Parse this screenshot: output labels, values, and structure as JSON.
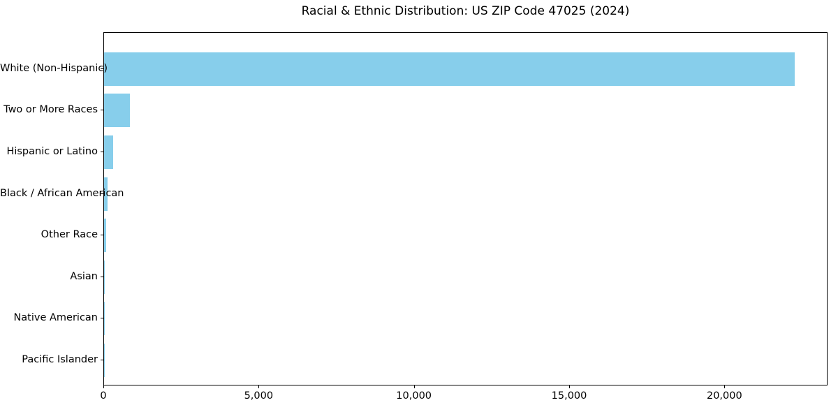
{
  "chart_data": {
    "type": "bar",
    "orientation": "horizontal",
    "title": "Racial & Ethnic Distribution: US ZIP Code 47025 (2024)",
    "categories": [
      "White (Non-Hispanic)",
      "Two or More Races",
      "Hispanic or Latino",
      "Black / African American",
      "Other Race",
      "Asian",
      "Native American",
      "Pacific Islander"
    ],
    "values": [
      22230,
      830,
      285,
      110,
      75,
      25,
      10,
      2
    ],
    "xlabel": "",
    "ylabel": "",
    "xlim": [
      0,
      23320
    ],
    "x_ticks": [
      0,
      5000,
      10000,
      15000,
      20000
    ],
    "x_tick_labels": [
      "0",
      "5,000",
      "10,000",
      "15,000",
      "20,000"
    ],
    "bar_color": "#87CEEB",
    "grid": false,
    "legend_position": "none"
  }
}
